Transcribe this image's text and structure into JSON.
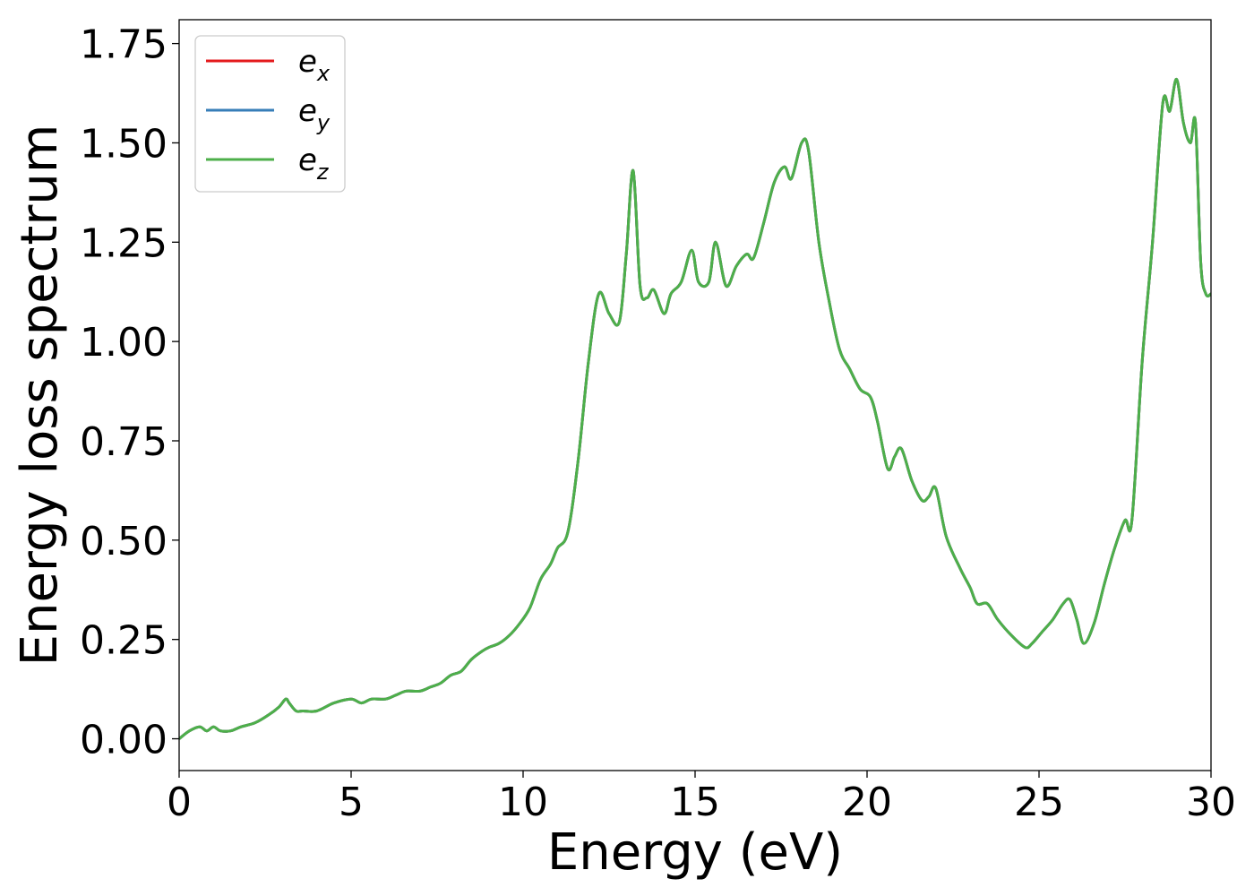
{
  "chart_data": {
    "type": "line",
    "xlabel": "Energy (eV)",
    "ylabel": "Energy loss spectrum",
    "xlim": [
      0,
      30
    ],
    "ylim": [
      -0.08,
      1.81
    ],
    "xticks": [
      0,
      5,
      10,
      15,
      20,
      25,
      30
    ],
    "xtick_labels": [
      "0",
      "5",
      "10",
      "15",
      "20",
      "25",
      "30"
    ],
    "yticks": [
      0.0,
      0.25,
      0.5,
      0.75,
      1.0,
      1.25,
      1.5,
      1.75
    ],
    "ytick_labels": [
      "0.00",
      "0.25",
      "0.50",
      "0.75",
      "1.00",
      "1.25",
      "1.50",
      "1.75"
    ],
    "grid": false,
    "legend_position": "top-left",
    "series": [
      {
        "name": "e",
        "subscript": "x",
        "color": "#e41a1c",
        "x": [
          0,
          0.3,
          0.6,
          0.8,
          1.0,
          1.2,
          1.5,
          1.8,
          2.2,
          2.6,
          2.9,
          3.1,
          3.2,
          3.4,
          3.6,
          4.0,
          4.5,
          5.0,
          5.3,
          5.6,
          6.0,
          6.3,
          6.6,
          7.0,
          7.3,
          7.6,
          7.9,
          8.2,
          8.5,
          8.8,
          9.0,
          9.3,
          9.6,
          9.9,
          10.2,
          10.5,
          10.8,
          11.0,
          11.3,
          11.6,
          11.9,
          12.2,
          12.5,
          12.8,
          13.0,
          13.2,
          13.4,
          13.6,
          13.8,
          14.1,
          14.3,
          14.6,
          14.9,
          15.1,
          15.4,
          15.6,
          15.9,
          16.2,
          16.5,
          16.7,
          17.0,
          17.3,
          17.6,
          17.8,
          18.1,
          18.3,
          18.6,
          18.9,
          19.2,
          19.5,
          19.8,
          20.1,
          20.3,
          20.6,
          20.8,
          21.0,
          21.3,
          21.6,
          21.8,
          22.0,
          22.3,
          22.7,
          23.0,
          23.2,
          23.5,
          23.8,
          24.2,
          24.6,
          24.8,
          25.1,
          25.4,
          25.7,
          25.9,
          26.1,
          26.3,
          26.6,
          26.9,
          27.2,
          27.5,
          27.7,
          28.0,
          28.3,
          28.6,
          28.8,
          29.0,
          29.2,
          29.4,
          29.55,
          29.7,
          29.85,
          30.0
        ],
        "y": [
          0.0,
          0.02,
          0.03,
          0.02,
          0.03,
          0.02,
          0.02,
          0.03,
          0.04,
          0.06,
          0.08,
          0.1,
          0.09,
          0.07,
          0.07,
          0.07,
          0.09,
          0.1,
          0.09,
          0.1,
          0.1,
          0.11,
          0.12,
          0.12,
          0.13,
          0.14,
          0.16,
          0.17,
          0.2,
          0.22,
          0.23,
          0.24,
          0.26,
          0.29,
          0.33,
          0.4,
          0.44,
          0.48,
          0.52,
          0.7,
          0.95,
          1.12,
          1.07,
          1.05,
          1.22,
          1.43,
          1.14,
          1.11,
          1.13,
          1.07,
          1.12,
          1.15,
          1.23,
          1.15,
          1.15,
          1.25,
          1.14,
          1.19,
          1.22,
          1.21,
          1.3,
          1.4,
          1.44,
          1.41,
          1.5,
          1.48,
          1.25,
          1.1,
          0.98,
          0.93,
          0.88,
          0.86,
          0.8,
          0.68,
          0.71,
          0.73,
          0.65,
          0.6,
          0.61,
          0.63,
          0.51,
          0.43,
          0.38,
          0.34,
          0.34,
          0.3,
          0.26,
          0.23,
          0.24,
          0.27,
          0.3,
          0.34,
          0.35,
          0.3,
          0.24,
          0.29,
          0.39,
          0.48,
          0.55,
          0.55,
          0.95,
          1.25,
          1.6,
          1.58,
          1.66,
          1.55,
          1.5,
          1.55,
          1.2,
          1.12,
          1.12
        ]
      },
      {
        "name": "e",
        "subscript": "y",
        "color": "#377eb8",
        "x": [
          0,
          0.3,
          0.6,
          0.8,
          1.0,
          1.2,
          1.5,
          1.8,
          2.2,
          2.6,
          2.9,
          3.1,
          3.2,
          3.4,
          3.6,
          4.0,
          4.5,
          5.0,
          5.3,
          5.6,
          6.0,
          6.3,
          6.6,
          7.0,
          7.3,
          7.6,
          7.9,
          8.2,
          8.5,
          8.8,
          9.0,
          9.3,
          9.6,
          9.9,
          10.2,
          10.5,
          10.8,
          11.0,
          11.3,
          11.6,
          11.9,
          12.2,
          12.5,
          12.8,
          13.0,
          13.2,
          13.4,
          13.6,
          13.8,
          14.1,
          14.3,
          14.6,
          14.9,
          15.1,
          15.4,
          15.6,
          15.9,
          16.2,
          16.5,
          16.7,
          17.0,
          17.3,
          17.6,
          17.8,
          18.1,
          18.3,
          18.6,
          18.9,
          19.2,
          19.5,
          19.8,
          20.1,
          20.3,
          20.6,
          20.8,
          21.0,
          21.3,
          21.6,
          21.8,
          22.0,
          22.3,
          22.7,
          23.0,
          23.2,
          23.5,
          23.8,
          24.2,
          24.6,
          24.8,
          25.1,
          25.4,
          25.7,
          25.9,
          26.1,
          26.3,
          26.6,
          26.9,
          27.2,
          27.5,
          27.7,
          28.0,
          28.3,
          28.6,
          28.8,
          29.0,
          29.2,
          29.4,
          29.55,
          29.7,
          29.85,
          30.0
        ],
        "y": [
          0.0,
          0.02,
          0.03,
          0.02,
          0.03,
          0.02,
          0.02,
          0.03,
          0.04,
          0.06,
          0.08,
          0.1,
          0.09,
          0.07,
          0.07,
          0.07,
          0.09,
          0.1,
          0.09,
          0.1,
          0.1,
          0.11,
          0.12,
          0.12,
          0.13,
          0.14,
          0.16,
          0.17,
          0.2,
          0.22,
          0.23,
          0.24,
          0.26,
          0.29,
          0.33,
          0.4,
          0.44,
          0.48,
          0.52,
          0.7,
          0.95,
          1.12,
          1.07,
          1.05,
          1.22,
          1.43,
          1.14,
          1.11,
          1.13,
          1.07,
          1.12,
          1.15,
          1.23,
          1.15,
          1.15,
          1.25,
          1.14,
          1.19,
          1.22,
          1.21,
          1.3,
          1.4,
          1.44,
          1.41,
          1.5,
          1.48,
          1.25,
          1.1,
          0.98,
          0.93,
          0.88,
          0.86,
          0.8,
          0.68,
          0.71,
          0.73,
          0.65,
          0.6,
          0.61,
          0.63,
          0.51,
          0.43,
          0.38,
          0.34,
          0.34,
          0.3,
          0.26,
          0.23,
          0.24,
          0.27,
          0.3,
          0.34,
          0.35,
          0.3,
          0.24,
          0.29,
          0.39,
          0.48,
          0.55,
          0.55,
          0.95,
          1.25,
          1.6,
          1.58,
          1.66,
          1.55,
          1.5,
          1.55,
          1.2,
          1.12,
          1.12
        ]
      },
      {
        "name": "e",
        "subscript": "z",
        "color": "#4daf4a",
        "x": [
          0,
          0.3,
          0.6,
          0.8,
          1.0,
          1.2,
          1.5,
          1.8,
          2.2,
          2.6,
          2.9,
          3.1,
          3.2,
          3.4,
          3.6,
          4.0,
          4.5,
          5.0,
          5.3,
          5.6,
          6.0,
          6.3,
          6.6,
          7.0,
          7.3,
          7.6,
          7.9,
          8.2,
          8.5,
          8.8,
          9.0,
          9.3,
          9.6,
          9.9,
          10.2,
          10.5,
          10.8,
          11.0,
          11.3,
          11.6,
          11.9,
          12.2,
          12.5,
          12.8,
          13.0,
          13.2,
          13.4,
          13.6,
          13.8,
          14.1,
          14.3,
          14.6,
          14.9,
          15.1,
          15.4,
          15.6,
          15.9,
          16.2,
          16.5,
          16.7,
          17.0,
          17.3,
          17.6,
          17.8,
          18.1,
          18.3,
          18.6,
          18.9,
          19.2,
          19.5,
          19.8,
          20.1,
          20.3,
          20.6,
          20.8,
          21.0,
          21.3,
          21.6,
          21.8,
          22.0,
          22.3,
          22.7,
          23.0,
          23.2,
          23.5,
          23.8,
          24.2,
          24.6,
          24.8,
          25.1,
          25.4,
          25.7,
          25.9,
          26.1,
          26.3,
          26.6,
          26.9,
          27.2,
          27.5,
          27.7,
          28.0,
          28.3,
          28.6,
          28.8,
          29.0,
          29.2,
          29.4,
          29.55,
          29.7,
          29.85,
          30.0
        ],
        "y": [
          0.0,
          0.02,
          0.03,
          0.02,
          0.03,
          0.02,
          0.02,
          0.03,
          0.04,
          0.06,
          0.08,
          0.1,
          0.09,
          0.07,
          0.07,
          0.07,
          0.09,
          0.1,
          0.09,
          0.1,
          0.1,
          0.11,
          0.12,
          0.12,
          0.13,
          0.14,
          0.16,
          0.17,
          0.2,
          0.22,
          0.23,
          0.24,
          0.26,
          0.29,
          0.33,
          0.4,
          0.44,
          0.48,
          0.52,
          0.7,
          0.95,
          1.12,
          1.07,
          1.05,
          1.22,
          1.43,
          1.14,
          1.11,
          1.13,
          1.07,
          1.12,
          1.15,
          1.23,
          1.15,
          1.15,
          1.25,
          1.14,
          1.19,
          1.22,
          1.21,
          1.3,
          1.4,
          1.44,
          1.41,
          1.5,
          1.48,
          1.25,
          1.1,
          0.98,
          0.93,
          0.88,
          0.86,
          0.8,
          0.68,
          0.71,
          0.73,
          0.65,
          0.6,
          0.61,
          0.63,
          0.51,
          0.43,
          0.38,
          0.34,
          0.34,
          0.3,
          0.26,
          0.23,
          0.24,
          0.27,
          0.3,
          0.34,
          0.35,
          0.3,
          0.24,
          0.29,
          0.39,
          0.48,
          0.55,
          0.55,
          0.95,
          1.25,
          1.6,
          1.58,
          1.66,
          1.55,
          1.5,
          1.55,
          1.2,
          1.12,
          1.12
        ]
      }
    ]
  }
}
